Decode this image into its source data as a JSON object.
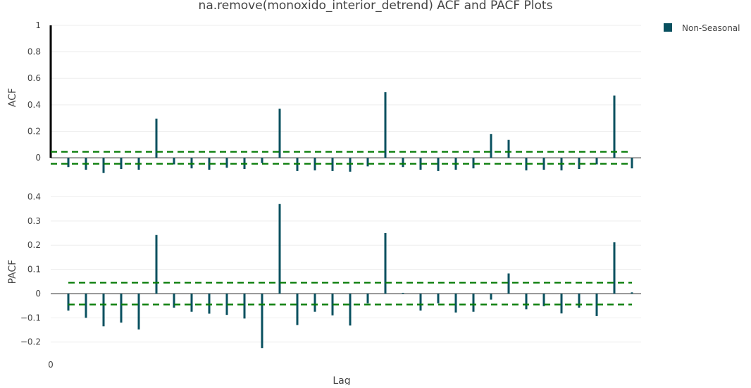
{
  "chart_data": {
    "type": "bar",
    "title": "na.remove(monoxido_interior_detrend) ACF and PACF Plots",
    "xlabel": "Lag",
    "x_tick_labels": [
      "0"
    ],
    "legend": {
      "label": "Non-Seasonal",
      "placement": "top-right",
      "color": "#08505f"
    },
    "colors": {
      "bars": "#08505f",
      "lag0_bar": "#000000",
      "ci_line": "#0a7d0a",
      "zero_line": "#555555",
      "grid": "#eeeeee",
      "text": "#444444"
    },
    "grid": true,
    "panels": [
      {
        "name": "acf",
        "ylabel": "ACF",
        "ylim": [
          -0.09,
          1.0
        ],
        "yticks": [
          0,
          0.2,
          0.4,
          0.6,
          0.8,
          1
        ],
        "ytick_labels": [
          "0",
          "0.2",
          "0.4",
          "0.6",
          "0.8",
          "1"
        ],
        "ci": [
          0.045,
          -0.045
        ],
        "lags": [
          0,
          1,
          2,
          3,
          4,
          5,
          6,
          7,
          8,
          9,
          10,
          11,
          12,
          13,
          14,
          15,
          16,
          17,
          18,
          19,
          20,
          21,
          22,
          23,
          24,
          25,
          26,
          27,
          28,
          29,
          30,
          31,
          32,
          33
        ],
        "values": [
          1.0,
          -0.07,
          -0.09,
          -0.115,
          -0.085,
          -0.09,
          0.295,
          -0.05,
          -0.08,
          -0.09,
          -0.075,
          -0.085,
          -0.04,
          0.37,
          -0.1,
          -0.095,
          -0.1,
          -0.105,
          -0.065,
          0.495,
          -0.07,
          -0.09,
          -0.1,
          -0.09,
          -0.08,
          0.18,
          0.135,
          -0.095,
          -0.09,
          -0.095,
          -0.085,
          -0.05,
          0.47,
          -0.08
        ]
      },
      {
        "name": "pacf",
        "ylabel": "PACF",
        "ylim": [
          -0.23,
          0.41
        ],
        "yticks": [
          -0.2,
          -0.1,
          0,
          0.1,
          0.2,
          0.3,
          0.4
        ],
        "ytick_labels": [
          "−0.2",
          "−0.1",
          "0",
          "0.1",
          "0.2",
          "0.3",
          "0.4"
        ],
        "ci": [
          0.045,
          -0.045
        ],
        "lags": [
          1,
          2,
          3,
          4,
          5,
          6,
          7,
          8,
          9,
          10,
          11,
          12,
          13,
          14,
          15,
          16,
          17,
          18,
          19,
          20,
          21,
          22,
          23,
          24,
          25,
          26,
          27,
          28,
          29,
          30,
          31,
          32,
          33
        ],
        "values": [
          -0.07,
          -0.1,
          -0.135,
          -0.12,
          -0.148,
          0.242,
          -0.058,
          -0.075,
          -0.083,
          -0.088,
          -0.103,
          -0.225,
          0.37,
          -0.13,
          -0.075,
          -0.09,
          -0.132,
          -0.04,
          0.25,
          0.003,
          -0.07,
          -0.04,
          -0.078,
          -0.075,
          -0.025,
          0.083,
          -0.065,
          -0.052,
          -0.082,
          -0.058,
          -0.093,
          0.212,
          0.005
        ]
      }
    ]
  }
}
